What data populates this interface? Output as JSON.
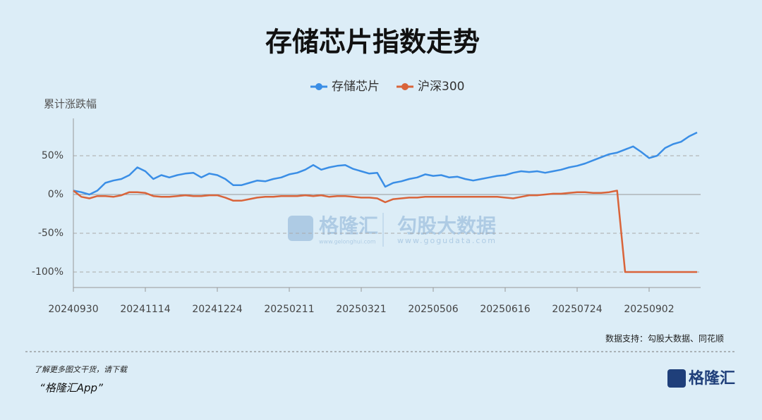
{
  "chart_data": {
    "type": "line",
    "title": "存储芯片指数走势",
    "y_label": "累计涨跌幅",
    "categories": [
      "20240930",
      null,
      null,
      null,
      null,
      null,
      null,
      null,
      null,
      "20241114",
      null,
      null,
      null,
      null,
      null,
      null,
      null,
      null,
      "20241224",
      null,
      null,
      null,
      null,
      null,
      null,
      null,
      null,
      "20250211",
      null,
      null,
      null,
      null,
      null,
      null,
      null,
      null,
      "20250321",
      null,
      null,
      null,
      null,
      null,
      null,
      null,
      null,
      "20250506",
      null,
      null,
      null,
      null,
      null,
      null,
      null,
      null,
      "20250616",
      null,
      null,
      null,
      null,
      null,
      null,
      null,
      null,
      "20250724",
      null,
      null,
      null,
      null,
      null,
      null,
      null,
      null,
      "20250902",
      null,
      null,
      null,
      null,
      null,
      null
    ],
    "series": [
      {
        "name": "存储芯片",
        "color": "#3a8ee6",
        "values": [
          5,
          3,
          0,
          5,
          15,
          18,
          20,
          25,
          35,
          30,
          20,
          25,
          22,
          25,
          27,
          28,
          22,
          27,
          25,
          20,
          12,
          12,
          15,
          18,
          17,
          20,
          22,
          26,
          28,
          32,
          38,
          32,
          35,
          37,
          38,
          33,
          30,
          27,
          28,
          10,
          15,
          17,
          20,
          22,
          26,
          24,
          25,
          22,
          23,
          20,
          18,
          20,
          22,
          24,
          25,
          28,
          30,
          29,
          30,
          28,
          30,
          32,
          35,
          37,
          40,
          44,
          48,
          52,
          54,
          58,
          62,
          55,
          47,
          50,
          60,
          65,
          68,
          75,
          80
        ]
      },
      {
        "name": "沪深300",
        "color": "#d9643a",
        "values": [
          5,
          -3,
          -5,
          -2,
          -2,
          -3,
          -1,
          3,
          3,
          2,
          -2,
          -3,
          -3,
          -2,
          -1,
          -2,
          -2,
          -1,
          -1,
          -4,
          -8,
          -8,
          -6,
          -4,
          -3,
          -3,
          -2,
          -2,
          -2,
          -1,
          -2,
          -1,
          -3,
          -2,
          -2,
          -3,
          -4,
          -4,
          -5,
          -10,
          -6,
          -5,
          -4,
          -4,
          -3,
          -3,
          -3,
          -3,
          -3,
          -3,
          -3,
          -3,
          -3,
          -3,
          -4,
          -5,
          -3,
          -1,
          -1,
          0,
          1,
          1,
          2,
          3,
          3,
          2,
          2,
          3,
          5,
          -100,
          -100,
          -100,
          -100,
          -100,
          -100,
          -100,
          -100,
          -100,
          -100
        ]
      }
    ],
    "ylim": [
      -120,
      100
    ],
    "yticks": [
      {
        "value": -100,
        "label": "-100%"
      },
      {
        "value": -50,
        "label": "-50%"
      },
      {
        "value": 0,
        "label": "0%"
      },
      {
        "value": 50,
        "label": "50%"
      }
    ],
    "grid": true,
    "legend": "top",
    "source": "数据支持：勾股大数据、同花顺"
  },
  "watermark": {
    "brand": "格隆汇",
    "brand_url": "www.gelonghui.com",
    "data": "勾股大数据",
    "data_url": "www.gogudata.com"
  },
  "footer": {
    "line1": "了解更多图文干货，请下载",
    "line2": "“格隆汇App”",
    "logo": "格隆汇"
  }
}
